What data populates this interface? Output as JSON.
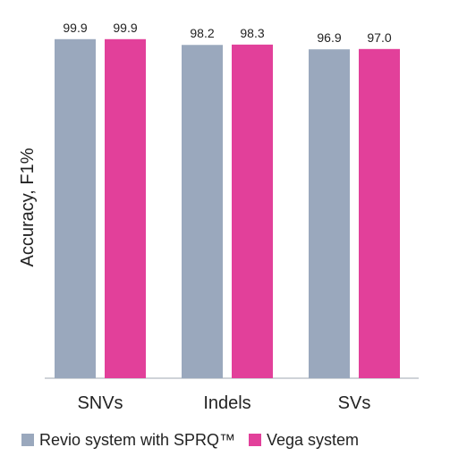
{
  "chart_data": {
    "type": "bar",
    "ylabel": "Accuracy, F1%",
    "categories": [
      "SNVs",
      "Indels",
      "SVs"
    ],
    "series": [
      {
        "name": "Revio system with SPRQ™",
        "color": "#9aa8bd",
        "values": [
          99.9,
          98.2,
          96.9
        ],
        "labels": [
          "99.9",
          "98.2",
          "96.9"
        ]
      },
      {
        "name": "Vega system",
        "color": "#e2409a",
        "values": [
          99.9,
          98.3,
          97.0
        ],
        "labels": [
          "99.9",
          "98.3",
          "97.0"
        ]
      }
    ],
    "ylim": [
      0,
      100.9
    ],
    "grid": false,
    "legend": "bottom",
    "axis_color": "#cfd3d8",
    "text_color": "#222222"
  }
}
